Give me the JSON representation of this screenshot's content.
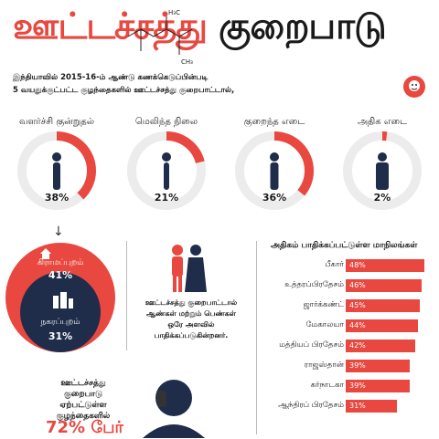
{
  "header": {
    "title_part1": "ஊட்டச்சத்து",
    "title_part2": "குறைபாடு",
    "formula_h3c": "H₃C",
    "formula_ch3": "CH₃"
  },
  "intro": {
    "line1": "இந்தியாவில் 2015-16-ம் ஆண்டு கணக்கெடுப்பின்படி",
    "line2": "5 வயதுக்குட்பட்ட குழந்தைகளில் ஊட்டச்சத்து குறைபாட்டால்,"
  },
  "rings": [
    {
      "label": "வளர்ச்சி குன்றுதல்",
      "pct": "38%",
      "value": 38
    },
    {
      "label": "மெலிந்த நிலை",
      "pct": "21%",
      "value": 21
    },
    {
      "label": "குறைந்த எடை",
      "pct": "36%",
      "value": 36
    },
    {
      "label": "அதிக எடை",
      "pct": "2%",
      "value": 2
    }
  ],
  "areas": {
    "rural_label": "கிராமப்புறம்",
    "rural_pct": "41%",
    "urban_label": "நகரப்புறம்",
    "urban_pct": "31%"
  },
  "equal_note": {
    "line1": "ஊட்டச்சத்து குறைபாட்டால்",
    "line2": "ஆண்கள் மற்றும் பெண்கள்",
    "line3": "ஒரே அளவில்",
    "line4": "பாதிக்கப்படுகின்றனர்."
  },
  "states": {
    "title": "அதிகம் பாதிக்கப்பட்டுள்ள மாநிலங்கள்",
    "items": [
      {
        "name": "பீகார்",
        "pct": "48%",
        "value": 48
      },
      {
        "name": "உத்தரப்பிரதேசம்",
        "pct": "46%",
        "value": 46
      },
      {
        "name": "ஜார்க்கண்ட்",
        "pct": "45%",
        "value": 45
      },
      {
        "name": "மேகாலயா",
        "pct": "44%",
        "value": 44
      },
      {
        "name": "மத்தியப் பிரதேசம்",
        "pct": "42%",
        "value": 42
      },
      {
        "name": "ராஜஸ்தான்",
        "pct": "39%",
        "value": 39
      },
      {
        "name": "கர்நாடகா",
        "pct": "39%",
        "value": 39
      },
      {
        "name": "ஆந்திரப் பிரதேசம்",
        "pct": "31%",
        "value": 31
      }
    ]
  },
  "bottom": {
    "line1": "ஊட்டச்சத்து",
    "line2": "குறைபாடு ஏற்பட்டுள்ள",
    "line3": "குழந்தைகளில்",
    "big": "72% பேர்"
  },
  "colors": {
    "accent": "#e8483f",
    "navy": "#1f2d4a",
    "ring_bg": "#ececec"
  }
}
